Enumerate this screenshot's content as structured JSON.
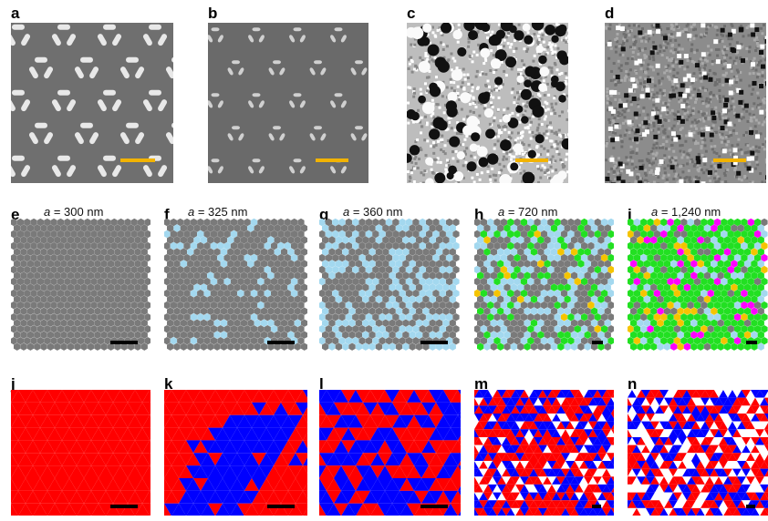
{
  "panel_labels": [
    "a",
    "b",
    "c",
    "d",
    "e",
    "f",
    "g",
    "h",
    "i",
    "j",
    "k",
    "l",
    "m",
    "n"
  ],
  "lattice_captions": [
    {
      "var": "a",
      "value": " = 300 nm"
    },
    {
      "var": "a",
      "value": " = 325 nm"
    },
    {
      "var": "a",
      "value": " = 360 nm"
    },
    {
      "var": "a",
      "value": " = 720 nm"
    },
    {
      "var": "a",
      "value": " = 1,240 nm"
    }
  ],
  "colors": {
    "scale_bar_sem": "#f2b300",
    "scale_bar": "#000000",
    "site_gray": "#7a7a7a",
    "site_blue": "#a3d8ef",
    "site_green": "#22e022",
    "site_yellow": "#f5c400",
    "site_magenta": "#ff00ff",
    "spin_red": "#ff0000",
    "spin_blue": "#0000ff",
    "spin_white": "#ffffff"
  }
}
